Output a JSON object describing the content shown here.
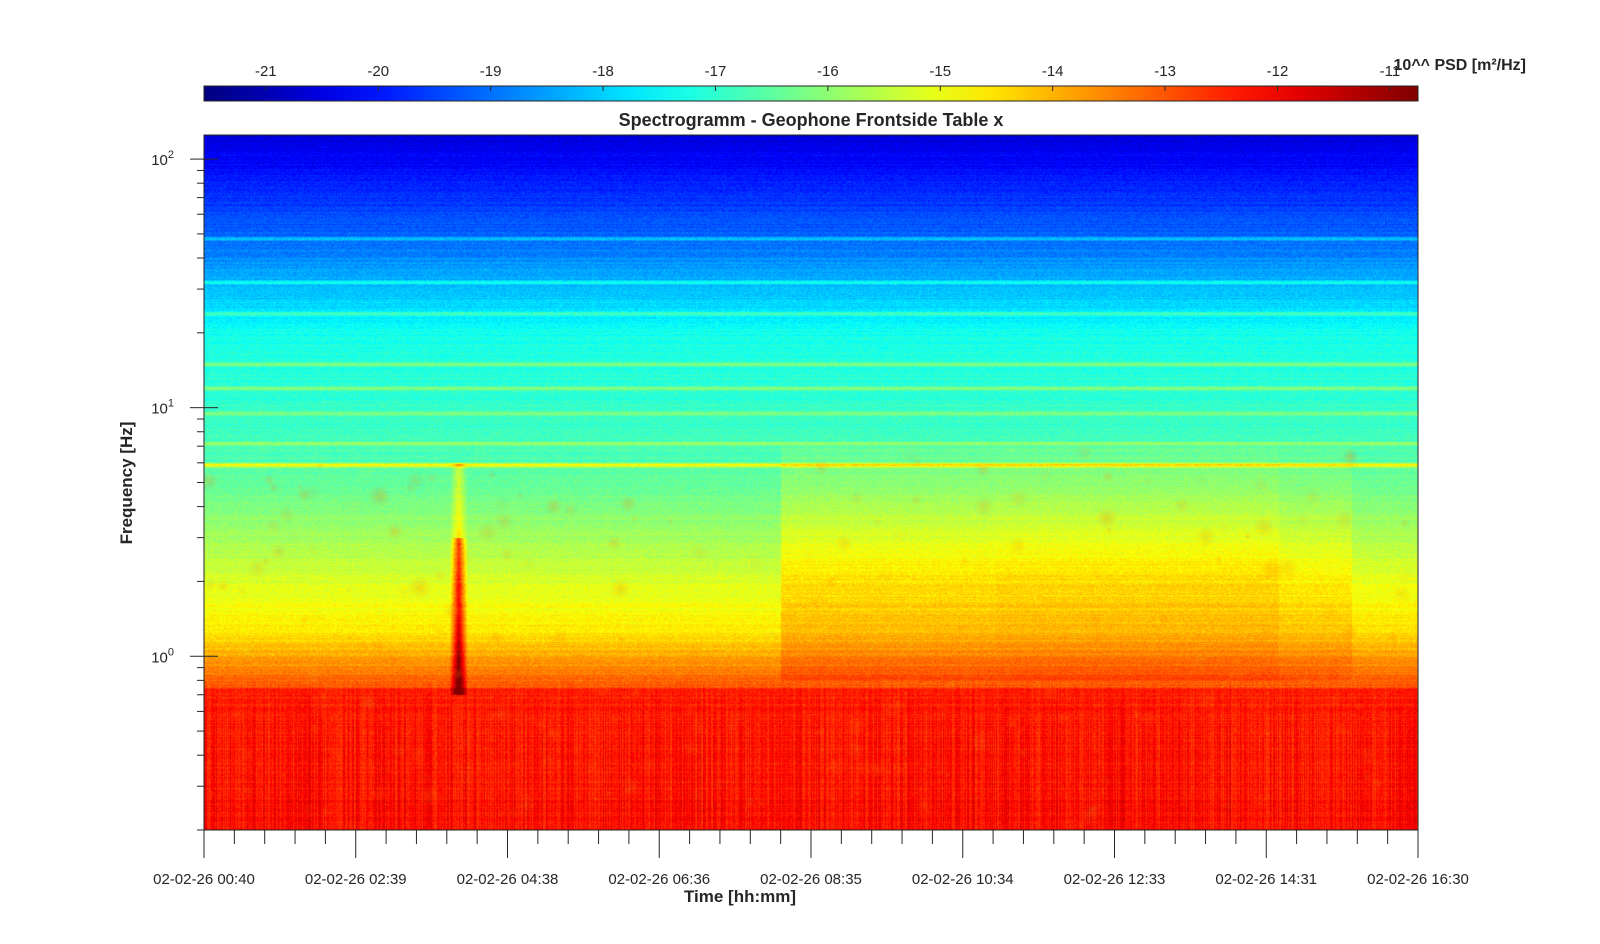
{
  "chart_data": {
    "type": "heatmap",
    "title": "Spectrogramm - Geophone Frontside Table x",
    "xlabel": "Time [hh:mm]",
    "ylabel": "Frequency [Hz]",
    "x_tick_labels": [
      "02-02-26 00:40",
      "02-02-26 02:39",
      "02-02-26 04:38",
      "02-02-26 06:36",
      "02-02-26 08:35",
      "02-02-26 10:34",
      "02-02-26 12:33",
      "02-02-26 14:31",
      "02-02-26 16:30"
    ],
    "y_scale": "log",
    "ylim": [
      0.2,
      125
    ],
    "y_ticks": [
      {
        "value": 1,
        "base": "10",
        "exp": "0"
      },
      {
        "value": 10,
        "base": "10",
        "exp": "1"
      },
      {
        "value": 100,
        "base": "10",
        "exp": "2"
      }
    ],
    "colorbar": {
      "label": "10^^ PSD [m²/Hz]",
      "colormap": "jet",
      "range": [
        -21.55,
        -10.75
      ],
      "ticks": [
        "-21",
        "-20",
        "-19",
        "-18",
        "-17",
        "-16",
        "-15",
        "-14",
        "-13",
        "-12",
        "-11"
      ],
      "tick_values": [
        -21,
        -20,
        -19,
        -18,
        -17,
        -16,
        -15,
        -14,
        -13,
        -12,
        -11
      ]
    },
    "features": {
      "tonal_lines_hz": [
        5.9,
        7.2,
        9.5,
        12,
        15,
        24,
        32,
        48
      ],
      "transient_event": {
        "time": "02-02-26 03:59",
        "freq_hz": [
          0.7,
          3.0
        ]
      },
      "low_frequency_floor_log10_psd": -12.2,
      "high_frequency_log10_psd": -20.6
    }
  }
}
